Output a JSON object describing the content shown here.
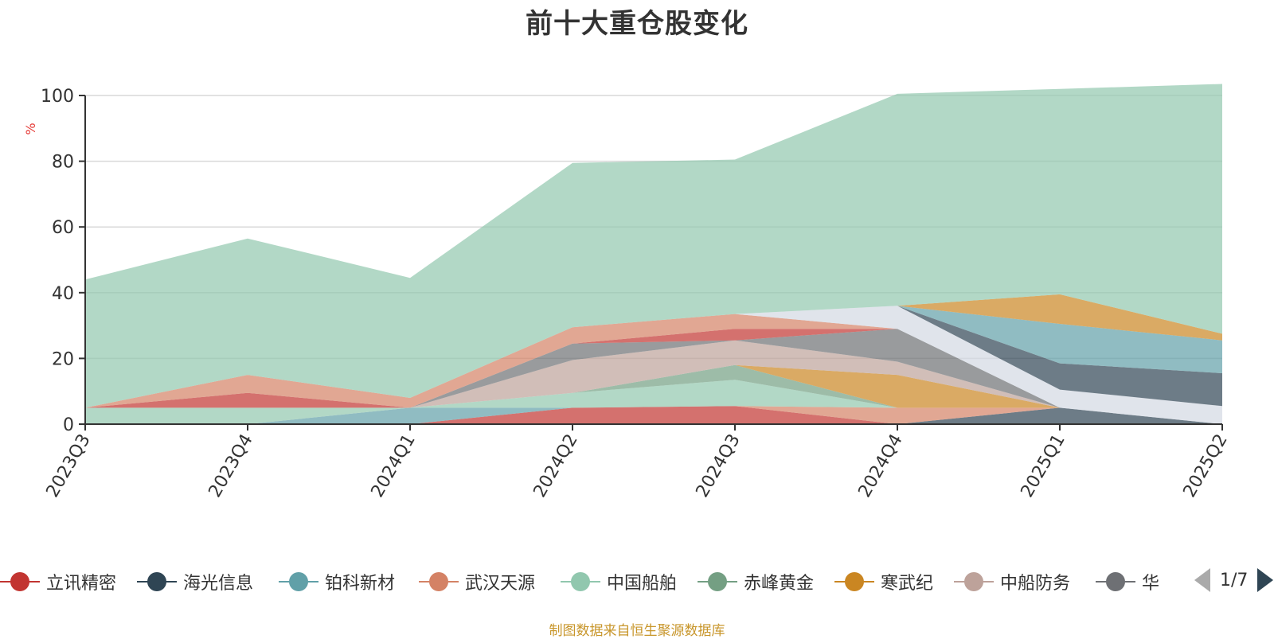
{
  "chart_data": {
    "type": "area",
    "title": "前十大重仓股变化",
    "ylabel": "%",
    "ylim": [
      0,
      100
    ],
    "y_ticks": [
      "0",
      "20",
      "40",
      "60",
      "80",
      "100"
    ],
    "categories": [
      "2023Q3",
      "2023Q4",
      "2024Q1",
      "2024Q2",
      "2024Q3",
      "2024Q4",
      "2025Q1",
      "2025Q2"
    ],
    "grid": true,
    "series": [
      {
        "name": "立讯精密",
        "color": "#c23531",
        "values": [
          0,
          0,
          0,
          5,
          5.5,
          0,
          0,
          0
        ]
      },
      {
        "name": "海光信息",
        "color": "#2f4554",
        "values": [
          0,
          0,
          0,
          0,
          0,
          0,
          5,
          0
        ]
      },
      {
        "name": "铂科新材",
        "color": "#61a0a8",
        "values": [
          0,
          0,
          5,
          0,
          0,
          0,
          0,
          0
        ]
      },
      {
        "name": "武汉天源",
        "color": "#d48265",
        "values": [
          0,
          0,
          0,
          0,
          0,
          5,
          0,
          0
        ]
      },
      {
        "name": "中国船舶",
        "color": "#91c7ae",
        "values": [
          5,
          5,
          0,
          4.5,
          8,
          0,
          0,
          0
        ]
      },
      {
        "name": "赤峰黄金",
        "color": "#749f83",
        "values": [
          0,
          0,
          0,
          0,
          4.5,
          0,
          0,
          0
        ]
      },
      {
        "name": "寒武纪",
        "color": "#ca8622",
        "values": [
          0,
          0,
          0,
          0,
          0,
          10,
          0,
          0
        ]
      },
      {
        "name": "中船防务",
        "color": "#bda29a",
        "values": [
          0,
          0,
          0,
          10,
          7.5,
          4,
          0,
          0
        ]
      },
      {
        "name": "华",
        "color": "#6e7074",
        "values": [
          0,
          0,
          0,
          5,
          0,
          10,
          0,
          0
        ]
      },
      {
        "name": "",
        "color": "#c23531",
        "values": [
          0,
          4.5,
          0,
          0,
          3.5,
          0,
          0,
          0
        ]
      },
      {
        "name": "",
        "color": "#d48265",
        "values": [
          0,
          5.5,
          3,
          5,
          4.5,
          0,
          0,
          0
        ]
      },
      {
        "name": "",
        "color": "#d3d9e2",
        "values": [
          0,
          0,
          0,
          0,
          0,
          7,
          5.5,
          5.5
        ]
      },
      {
        "name": "",
        "color": "#2f4554",
        "values": [
          0,
          0,
          0,
          0,
          0,
          0,
          8,
          10
        ]
      },
      {
        "name": "",
        "color": "#61a0a8",
        "values": [
          0,
          0,
          0,
          0,
          0,
          0,
          12,
          10
        ]
      },
      {
        "name": "",
        "color": "#ca8622",
        "values": [
          0,
          0,
          0,
          0,
          0,
          0,
          9,
          2
        ]
      },
      {
        "name": "",
        "color": "#91c7ae",
        "values": [
          39,
          41.5,
          36.5,
          50,
          47,
          64.5,
          62.5,
          76
        ]
      }
    ]
  },
  "legend": {
    "items": [
      {
        "label": "立讯精密",
        "color": "#c23531"
      },
      {
        "label": "海光信息",
        "color": "#2f4554"
      },
      {
        "label": "铂科新材",
        "color": "#61a0a8"
      },
      {
        "label": "武汉天源",
        "color": "#d48265"
      },
      {
        "label": "中国船舶",
        "color": "#91c7ae"
      },
      {
        "label": "赤峰黄金",
        "color": "#749f83"
      },
      {
        "label": "寒武纪",
        "color": "#ca8622"
      },
      {
        "label": "中船防务",
        "color": "#bda29a"
      },
      {
        "label": "华",
        "color": "#6e7074"
      }
    ],
    "page_indicator": "1/7"
  },
  "footer": {
    "source": "制图数据来自恒生聚源数据库"
  }
}
